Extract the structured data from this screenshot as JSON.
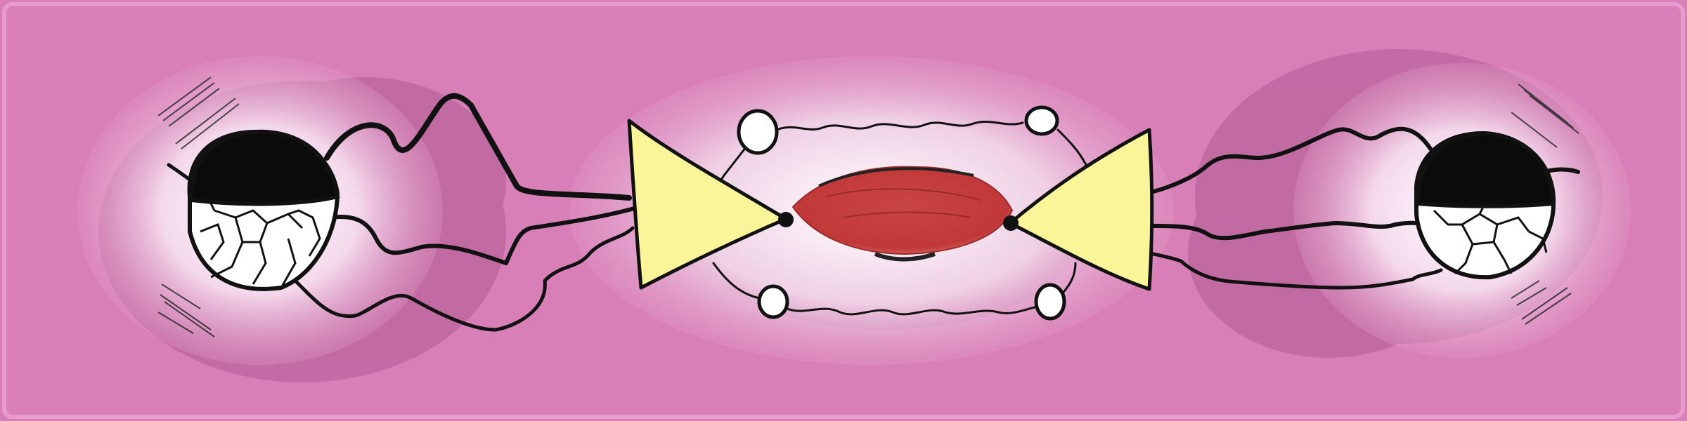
{
  "colors": {
    "background": "#d97fb8",
    "panel_glow": "#f7e4f0",
    "shadow": "#b05b93",
    "vertex_fill": "#fbf59a",
    "core_fill": "#c43d3d",
    "line": "#111111",
    "ball_top": "#0b0b0b",
    "ball_bottom": "#ffffff"
  },
  "icons": {
    "left_ball": "soccer-ball-icon",
    "right_ball": "soccer-ball-icon",
    "left_vertex": "triangle-vertex-icon",
    "right_vertex": "triangle-vertex-icon",
    "core": "red-lens-icon",
    "small_loop": "circle-node-icon"
  }
}
